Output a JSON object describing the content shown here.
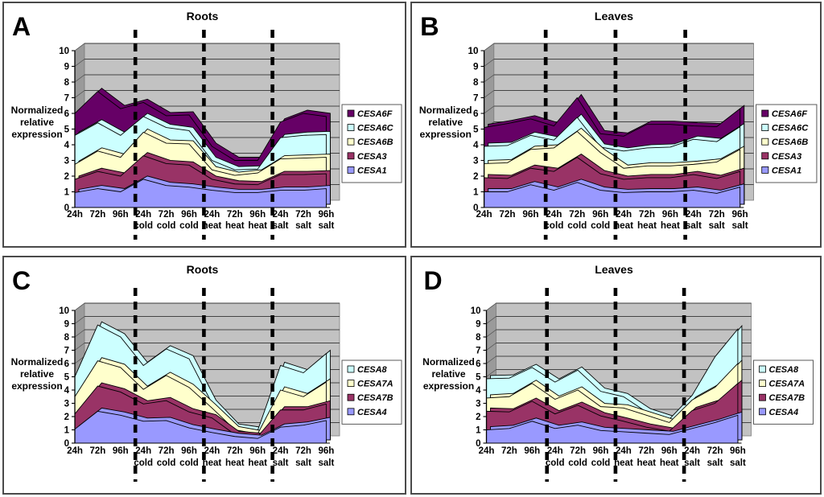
{
  "style": {
    "back_wall_color": "#c2c2c2",
    "side_wall_color": "#9a9a9a",
    "gridline_color": "#1a1a1a",
    "area_outline_color": "#000000",
    "separator_color": "#000000",
    "legend_border_color": "#5a5a5a",
    "text_color": "#000000"
  },
  "chart_data": [
    {
      "panel_label": "A",
      "title": "Roots",
      "type": "area",
      "stacked": true,
      "ylabel": "Normalized relative expression",
      "ylim": [
        0,
        10
      ],
      "yticks": [
        0,
        1,
        2,
        3,
        4,
        5,
        6,
        7,
        8,
        9,
        10
      ],
      "categories": [
        "24h",
        "72h",
        "96h",
        "24h",
        "72h",
        "96h",
        "24h",
        "72h",
        "96h",
        "24h",
        "72h",
        "96h"
      ],
      "group_labels": [
        "",
        "",
        "",
        "cold",
        "cold",
        "cold",
        "heat",
        "heat",
        "heat",
        "salt",
        "salt",
        "salt"
      ],
      "separator_before": [
        3,
        6,
        9
      ],
      "legend_position": "right",
      "series": [
        {
          "name": "CESA1",
          "color": "#9999FF",
          "values": [
            0.95,
            1.2,
            1.0,
            1.8,
            1.4,
            1.3,
            1.1,
            0.95,
            0.95,
            1.1,
            1.1,
            1.2
          ]
        },
        {
          "name": "CESA3",
          "color": "#993366",
          "values": [
            0.85,
            1.1,
            1.0,
            1.5,
            1.4,
            1.4,
            0.7,
            0.55,
            0.5,
            1.0,
            1.0,
            0.95
          ]
        },
        {
          "name": "CESA6B",
          "color": "#FFFFCC",
          "values": [
            0.95,
            1.3,
            1.2,
            1.5,
            1.3,
            1.35,
            0.6,
            0.55,
            0.75,
            1.0,
            1.05,
            1.05
          ]
        },
        {
          "name": "CESA6C",
          "color": "#CCFFFF",
          "values": [
            1.85,
            1.8,
            1.4,
            1.0,
            1.0,
            0.85,
            0.6,
            0.35,
            0.25,
            1.35,
            1.45,
            1.45
          ]
        },
        {
          "name": "CESA6F",
          "color": "#660066",
          "values": [
            1.4,
            2.0,
            1.7,
            0.9,
            0.75,
            1.0,
            0.9,
            0.6,
            0.55,
            1.0,
            1.4,
            1.15
          ]
        }
      ]
    },
    {
      "panel_label": "B",
      "title": "Leaves",
      "type": "area",
      "stacked": true,
      "ylabel": "Normalized relative expression",
      "ylim": [
        0,
        10
      ],
      "yticks": [
        0,
        1,
        2,
        3,
        4,
        5,
        6,
        7,
        8,
        9,
        10
      ],
      "categories": [
        "24h",
        "72h",
        "96h",
        "24h",
        "72h",
        "96h",
        "24h",
        "72h",
        "96h",
        "24h",
        "72h",
        "96h"
      ],
      "group_labels": [
        "",
        "",
        "",
        "cold",
        "cold",
        "cold",
        "heat",
        "heat",
        "heat",
        "salt",
        "salt",
        "salt"
      ],
      "separator_before": [
        3,
        6,
        9
      ],
      "legend_position": "right",
      "series": [
        {
          "name": "CESA1",
          "color": "#9999FF",
          "values": [
            1.0,
            1.0,
            1.45,
            1.1,
            1.6,
            1.1,
            0.95,
            1.0,
            1.0,
            1.1,
            0.9,
            1.3
          ]
        },
        {
          "name": "CESA3",
          "color": "#993366",
          "values": [
            0.9,
            0.85,
            1.05,
            1.2,
            1.6,
            1.05,
            0.85,
            0.9,
            0.9,
            1.0,
            0.95,
            1.0
          ]
        },
        {
          "name": "CESA6B",
          "color": "#FFFFCC",
          "values": [
            0.9,
            1.0,
            1.2,
            1.5,
            1.65,
            1.35,
            0.7,
            0.75,
            0.75,
            0.65,
            1.05,
            1.4
          ]
        },
        {
          "name": "CESA6C",
          "color": "#CCFFFF",
          "values": [
            1.1,
            1.1,
            0.9,
            0.5,
            0.9,
            0.35,
            1.1,
            1.15,
            1.2,
            1.6,
            1.3,
            1.45
          ]
        },
        {
          "name": "CESA6F",
          "color": "#660066",
          "values": [
            1.2,
            1.4,
            1.05,
            0.9,
            1.25,
            0.85,
            0.95,
            1.5,
            1.45,
            0.85,
            0.95,
            1.15
          ]
        }
      ]
    },
    {
      "panel_label": "C",
      "title": "Roots",
      "type": "area",
      "stacked": true,
      "ylabel": "Normalized relative expression",
      "ylim": [
        0,
        10
      ],
      "yticks": [
        0,
        1,
        2,
        3,
        4,
        5,
        6,
        7,
        8,
        9,
        10
      ],
      "categories": [
        "24h",
        "72h",
        "96h",
        "24h",
        "72h",
        "96h",
        "24h",
        "72h",
        "96h",
        "24h",
        "72h",
        "96h"
      ],
      "group_labels": [
        "",
        "",
        "",
        "cold",
        "cold",
        "cold",
        "heat",
        "heat",
        "heat",
        "salt",
        "salt",
        "salt"
      ],
      "separator_before": [
        3,
        6,
        9
      ],
      "legend_position": "right",
      "series": [
        {
          "name": "CESA4",
          "color": "#9999FF",
          "values": [
            1.05,
            2.4,
            2.1,
            1.65,
            1.7,
            1.15,
            0.8,
            0.5,
            0.35,
            1.2,
            1.35,
            1.7
          ]
        },
        {
          "name": "CESA7B",
          "color": "#993366",
          "values": [
            1.15,
            1.9,
            1.75,
            1.3,
            1.5,
            1.2,
            1.1,
            0.15,
            0.15,
            1.3,
            1.15,
            1.25
          ]
        },
        {
          "name": "CESA7A",
          "color": "#FFFFCC",
          "values": [
            1.3,
            1.9,
            1.85,
            1.1,
            1.9,
            1.85,
            0.75,
            0.35,
            0.2,
            1.5,
            1.0,
            1.65
          ]
        },
        {
          "name": "CESA8",
          "color": "#CCFFFF",
          "values": [
            1.5,
            2.7,
            2.3,
            1.8,
            2.0,
            2.15,
            0.35,
            0.2,
            0.25,
            1.85,
            1.8,
            2.15
          ]
        }
      ]
    },
    {
      "panel_label": "D",
      "title": "Leaves",
      "type": "area",
      "stacked": true,
      "ylabel": "Normalized relative expression",
      "ylim": [
        0,
        10
      ],
      "yticks": [
        0,
        1,
        2,
        3,
        4,
        5,
        6,
        7,
        8,
        9,
        10
      ],
      "categories": [
        "24h",
        "72h",
        "96h",
        "24h",
        "72h",
        "96h",
        "24h",
        "72h",
        "96h",
        "24h",
        "72h",
        "96h"
      ],
      "group_labels": [
        "",
        "",
        "",
        "cold",
        "cold",
        "cold",
        "heat",
        "heat",
        "heat",
        "salt",
        "salt",
        "salt"
      ],
      "separator_before": [
        3,
        6,
        9
      ],
      "legend_position": "right",
      "series": [
        {
          "name": "CESA4",
          "color": "#9999FF",
          "values": [
            1.0,
            1.1,
            1.65,
            1.1,
            1.35,
            0.95,
            0.85,
            0.75,
            0.65,
            1.1,
            1.55,
            2.1
          ]
        },
        {
          "name": "CESA7B",
          "color": "#993366",
          "values": [
            1.4,
            1.25,
            1.5,
            1.1,
            1.5,
            1.1,
            0.8,
            0.45,
            0.25,
            1.35,
            1.45,
            2.4
          ]
        },
        {
          "name": "CESA7A",
          "color": "#FFFFCC",
          "values": [
            1.0,
            1.15,
            1.35,
            1.1,
            1.15,
            0.7,
            1.0,
            0.9,
            0.65,
            0.8,
            1.2,
            1.5
          ]
        },
        {
          "name": "CESA8",
          "color": "#CCFFFF",
          "values": [
            1.45,
            1.4,
            1.2,
            1.3,
            1.5,
            1.15,
            0.85,
            0.25,
            0.25,
            0.35,
            2.3,
            2.6
          ]
        }
      ]
    }
  ]
}
